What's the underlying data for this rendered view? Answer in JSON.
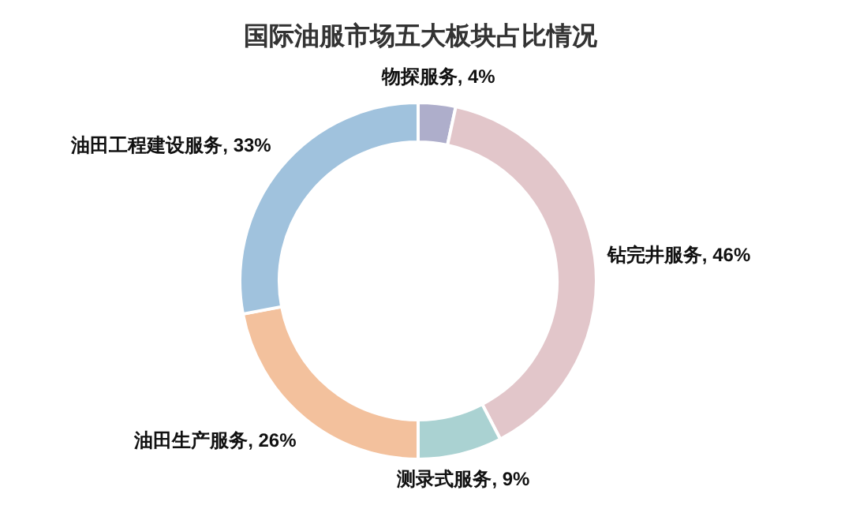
{
  "chart_data": {
    "type": "donut",
    "title": "国际油服市场五大板块占比情况",
    "categories": [
      "物探服务",
      "钻完井服务",
      "测录式服务",
      "油田生产服务",
      "油田工程建设服务"
    ],
    "values": [
      4,
      46,
      9,
      26,
      33
    ],
    "value_labels": [
      "4%",
      "46%",
      "9%",
      "26%",
      "33%"
    ],
    "colors": [
      "#aeaecb",
      "#e2c6ca",
      "#aad2d2",
      "#f3c19d",
      "#a0c2dd"
    ]
  }
}
